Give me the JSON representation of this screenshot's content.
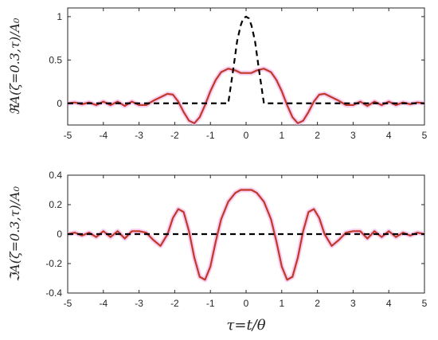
{
  "chart_data": [
    {
      "type": "line",
      "ylabel": "ℜA(ζ=0.3,τ)/A₀",
      "xlim": [
        -5,
        5
      ],
      "ylim": [
        -0.25,
        1.1
      ],
      "xticks": [
        -5,
        -4,
        -3,
        -2,
        -1,
        0,
        1,
        2,
        3,
        4,
        5
      ],
      "yticks": [
        0,
        0.5,
        1
      ],
      "grid": false,
      "series": [
        {
          "style": "dashed",
          "color": "#000000",
          "x": [
            -5,
            -0.5,
            -0.35,
            -0.25,
            -0.15,
            -0.08,
            0,
            0.08,
            0.15,
            0.25,
            0.35,
            0.5,
            5
          ],
          "y": [
            0,
            0,
            0.42,
            0.72,
            0.9,
            0.98,
            1.0,
            0.98,
            0.9,
            0.72,
            0.42,
            0,
            0
          ]
        },
        {
          "style": "solid",
          "color": "#c0392b",
          "x": [
            -5,
            -4.8,
            -4.6,
            -4.4,
            -4.2,
            -4.0,
            -3.8,
            -3.6,
            -3.4,
            -3.2,
            -3.0,
            -2.8,
            -2.6,
            -2.4,
            -2.2,
            -2.05,
            -1.9,
            -1.75,
            -1.6,
            -1.45,
            -1.3,
            -1.15,
            -1.0,
            -0.85,
            -0.7,
            -0.5,
            -0.3,
            -0.15,
            0,
            0.15,
            0.3,
            0.5,
            0.7,
            0.85,
            1.0,
            1.15,
            1.3,
            1.45,
            1.6,
            1.75,
            1.9,
            2.05,
            2.2,
            2.4,
            2.6,
            2.8,
            3.0,
            3.2,
            3.4,
            3.6,
            3.8,
            4.0,
            4.2,
            4.4,
            4.6,
            4.8,
            5
          ],
          "y": [
            0.0,
            0.01,
            -0.01,
            0.01,
            -0.02,
            0.02,
            -0.02,
            0.02,
            -0.03,
            0.02,
            -0.02,
            -0.02,
            0.03,
            0.07,
            0.11,
            0.1,
            0.02,
            -0.1,
            -0.2,
            -0.23,
            -0.16,
            -0.02,
            0.14,
            0.27,
            0.36,
            0.4,
            0.38,
            0.35,
            0.35,
            0.35,
            0.38,
            0.4,
            0.36,
            0.27,
            0.14,
            -0.02,
            -0.16,
            -0.23,
            -0.2,
            -0.1,
            0.02,
            0.1,
            0.11,
            0.07,
            0.03,
            -0.02,
            -0.02,
            0.02,
            -0.03,
            0.02,
            -0.02,
            0.02,
            -0.02,
            0.01,
            -0.01,
            0.01,
            0.0
          ]
        }
      ]
    },
    {
      "type": "line",
      "ylabel": "ℑA(ζ=0.3,τ)/A₀",
      "xlabel": "τ=t/θ",
      "xlim": [
        -5,
        5
      ],
      "ylim": [
        -0.4,
        0.4
      ],
      "xticks": [
        -5,
        -4,
        -3,
        -2,
        -1,
        0,
        1,
        2,
        3,
        4,
        5
      ],
      "yticks": [
        -0.4,
        -0.2,
        0,
        0.2,
        0.4
      ],
      "grid": false,
      "series": [
        {
          "style": "dashed",
          "color": "#000000",
          "x": [
            -5,
            5
          ],
          "y": [
            0,
            0
          ]
        },
        {
          "style": "solid",
          "color": "#c0392b",
          "x": [
            -5,
            -4.8,
            -4.6,
            -4.4,
            -4.2,
            -4.0,
            -3.8,
            -3.6,
            -3.4,
            -3.2,
            -3.0,
            -2.8,
            -2.6,
            -2.4,
            -2.2,
            -2.05,
            -1.9,
            -1.75,
            -1.6,
            -1.45,
            -1.3,
            -1.15,
            -1.0,
            -0.85,
            -0.7,
            -0.5,
            -0.3,
            -0.15,
            0,
            0.15,
            0.3,
            0.5,
            0.7,
            0.85,
            1.0,
            1.15,
            1.3,
            1.45,
            1.6,
            1.75,
            1.9,
            2.05,
            2.2,
            2.4,
            2.6,
            2.8,
            3.0,
            3.2,
            3.4,
            3.6,
            3.8,
            4.0,
            4.2,
            4.4,
            4.6,
            4.8,
            5
          ],
          "y": [
            0.0,
            0.01,
            -0.01,
            0.01,
            -0.02,
            0.02,
            -0.02,
            0.02,
            -0.03,
            0.02,
            0.02,
            0.01,
            -0.04,
            -0.08,
            0.0,
            0.11,
            0.17,
            0.15,
            0.02,
            -0.16,
            -0.29,
            -0.31,
            -0.22,
            -0.05,
            0.1,
            0.22,
            0.28,
            0.3,
            0.3,
            0.3,
            0.28,
            0.22,
            0.1,
            -0.05,
            -0.22,
            -0.31,
            -0.29,
            -0.16,
            0.02,
            0.15,
            0.17,
            0.11,
            0.0,
            -0.08,
            -0.04,
            0.01,
            0.02,
            0.02,
            -0.03,
            0.02,
            -0.02,
            0.02,
            -0.02,
            0.01,
            -0.01,
            0.01,
            0.0
          ]
        }
      ]
    }
  ]
}
